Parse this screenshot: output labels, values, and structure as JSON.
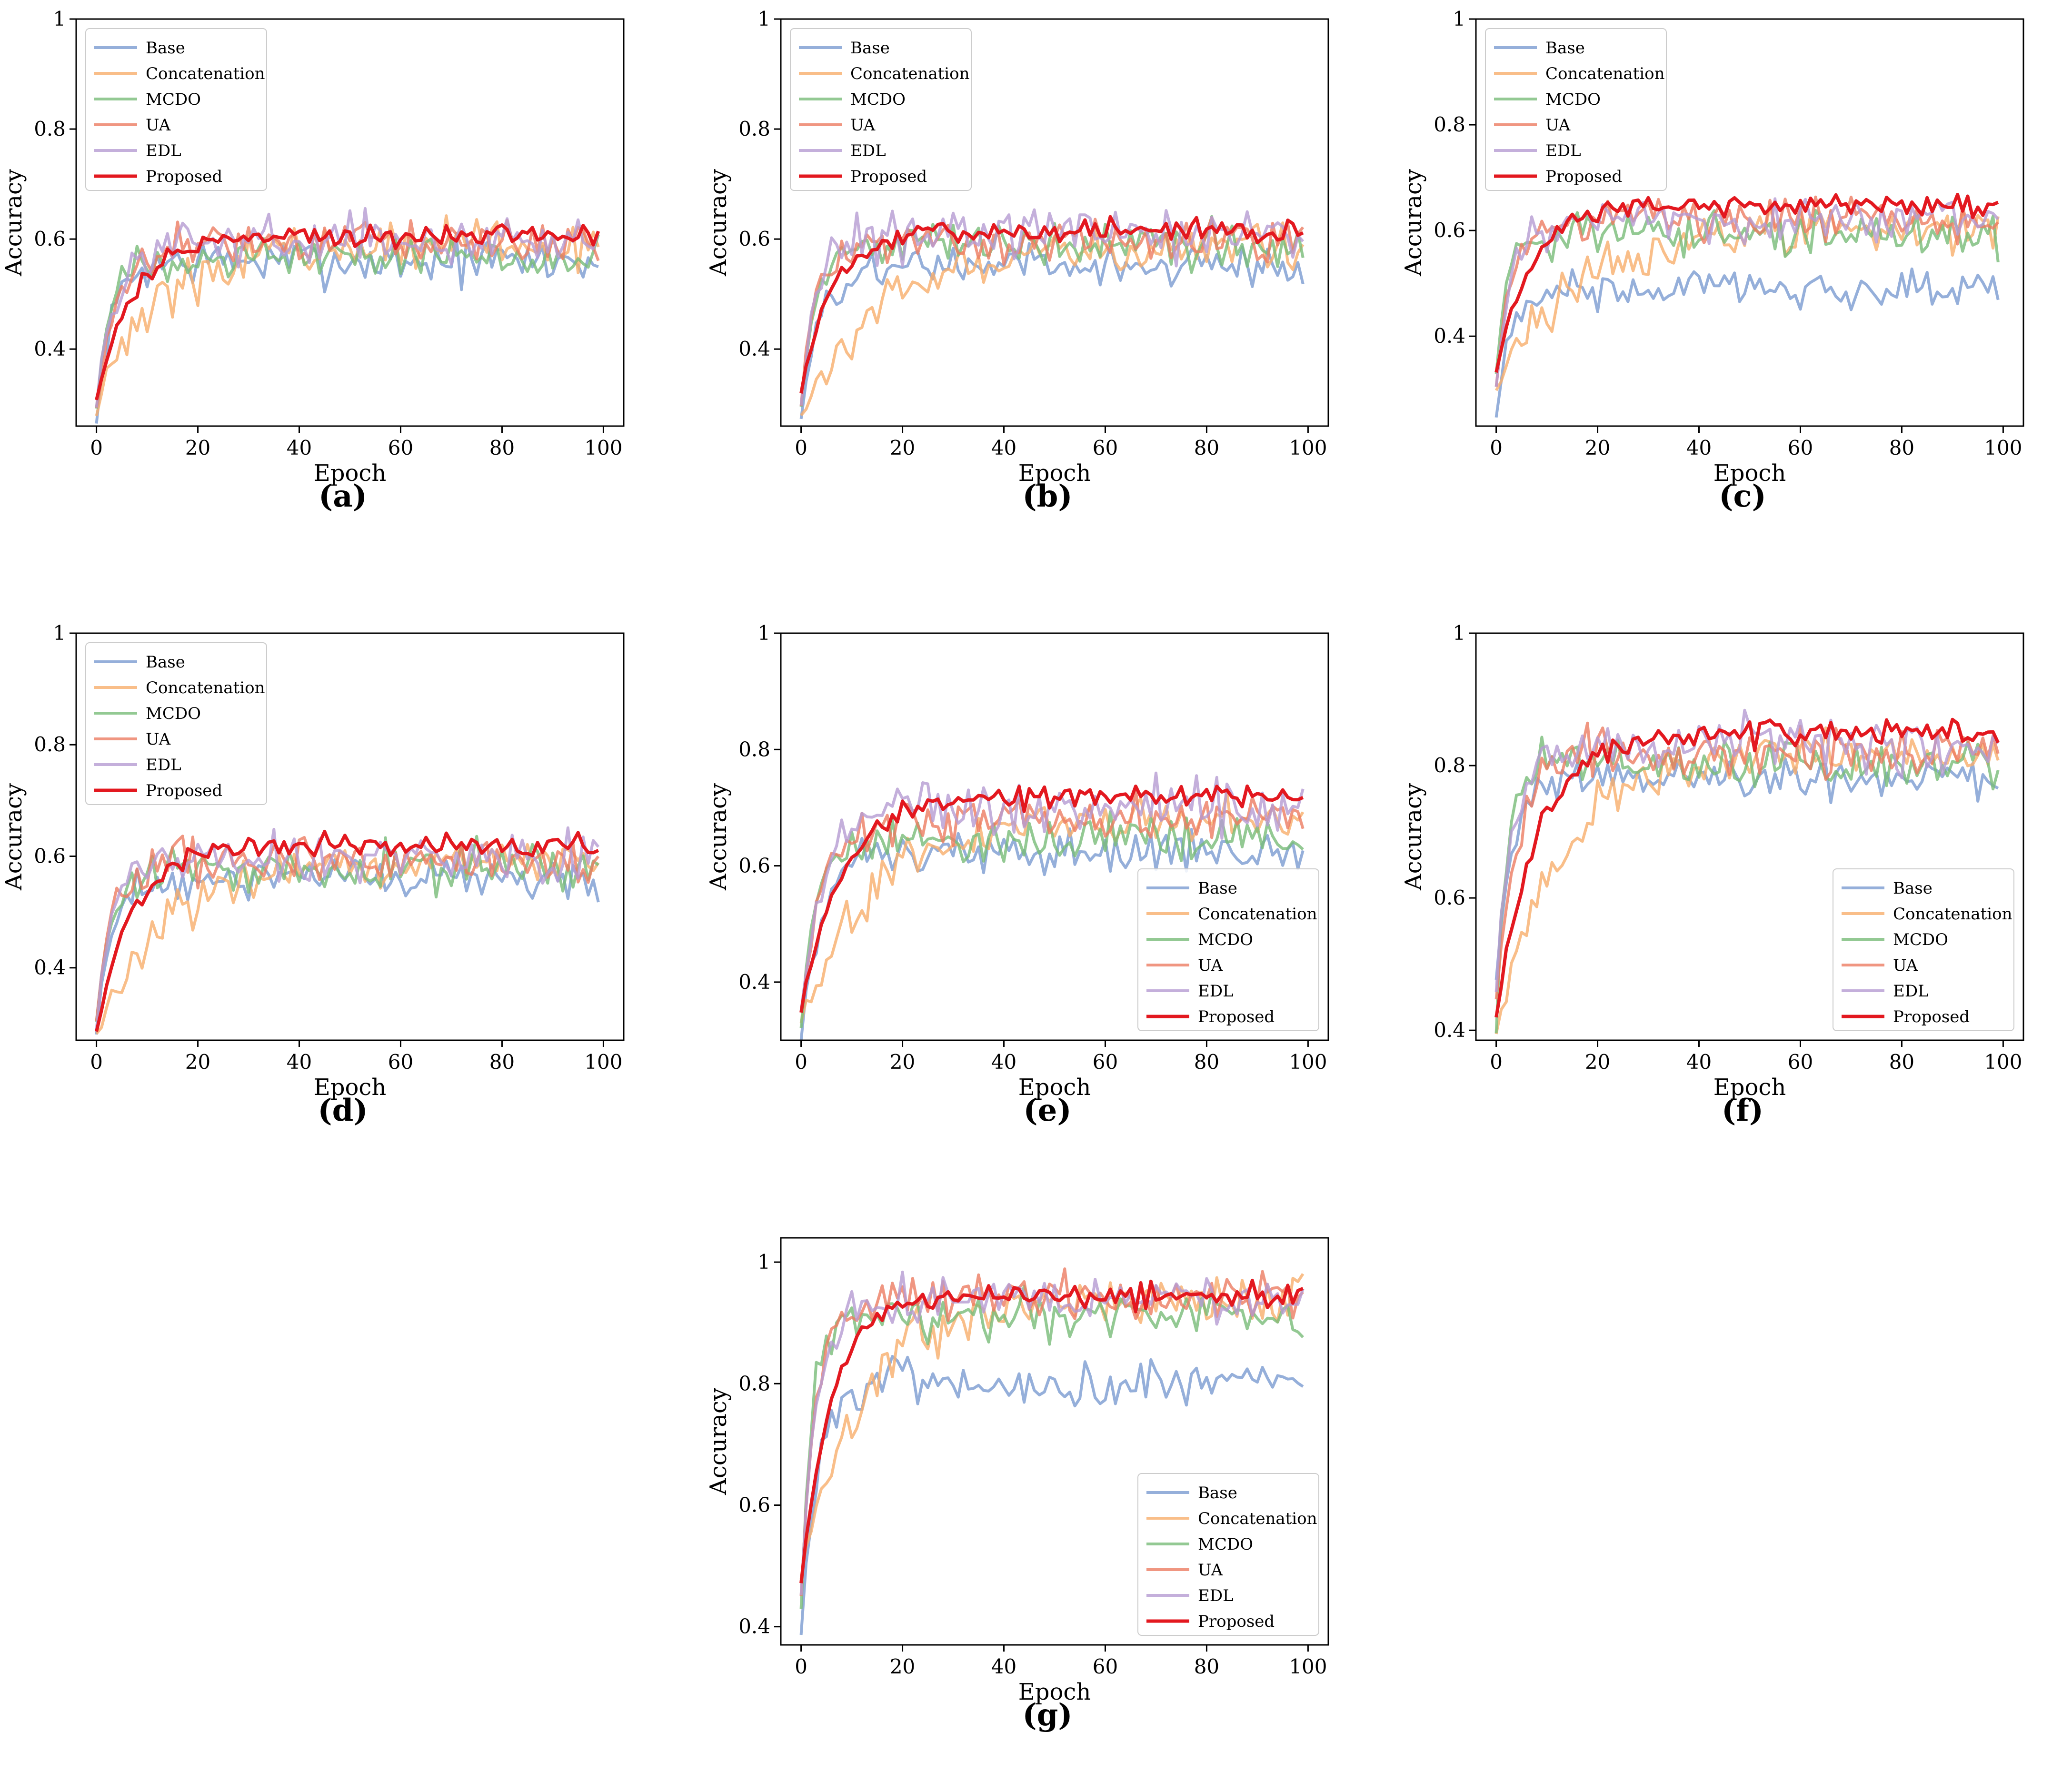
{
  "figure": {
    "series_names": [
      "Base",
      "Concatenation",
      "MCDO",
      "UA",
      "EDL",
      "Proposed"
    ],
    "series_colors": [
      "#7b9bd1",
      "#f8ae6c",
      "#78bb78",
      "#ec7c62",
      "#b59bd2",
      "#e3181f"
    ]
  },
  "chart_data": [
    {
      "panel": "a",
      "caption": "(a)",
      "type": "line",
      "xlabel": "Epoch",
      "ylabel": "Accuracy",
      "xlim": [
        -4,
        104
      ],
      "ylim": [
        0.26,
        1.0
      ],
      "xticks": [
        0,
        20,
        40,
        60,
        80,
        100
      ],
      "xtick_labels": [
        "0",
        "20",
        "40",
        "60",
        "80",
        "100"
      ],
      "yticks": [
        0.4,
        0.6,
        0.8,
        1.0
      ],
      "ytick_labels": [
        "0.4",
        "0.6",
        "0.8",
        "1"
      ],
      "legend": "top-left",
      "series": [
        {
          "name": "Base",
          "start": 0.26,
          "end": 0.56,
          "tau": 3,
          "noise": 0.022
        },
        {
          "name": "Concatenation",
          "start": 0.29,
          "end": 0.59,
          "tau": 12,
          "noise": 0.022
        },
        {
          "name": "MCDO",
          "start": 0.3,
          "end": 0.57,
          "tau": 3,
          "noise": 0.018
        },
        {
          "name": "UA",
          "start": 0.3,
          "end": 0.59,
          "tau": 4,
          "noise": 0.018
        },
        {
          "name": "EDL",
          "start": 0.3,
          "end": 0.6,
          "tau": 4,
          "noise": 0.02
        },
        {
          "name": "Proposed",
          "start": 0.31,
          "end": 0.605,
          "tau": 7,
          "noise": 0.01
        }
      ]
    },
    {
      "panel": "b",
      "caption": "(b)",
      "type": "line",
      "xlabel": "Epoch",
      "ylabel": "Accuracy",
      "xlim": [
        -4,
        104
      ],
      "ylim": [
        0.26,
        1.0
      ],
      "xticks": [
        0,
        20,
        40,
        60,
        80,
        100
      ],
      "xtick_labels": [
        "0",
        "20",
        "40",
        "60",
        "80",
        "100"
      ],
      "yticks": [
        0.4,
        0.6,
        0.8,
        1.0
      ],
      "ytick_labels": [
        "0.4",
        "0.6",
        "0.8",
        "1"
      ],
      "legend": "top-left",
      "series": [
        {
          "name": "Base",
          "start": 0.28,
          "end": 0.55,
          "tau": 4,
          "noise": 0.018
        },
        {
          "name": "Concatenation",
          "start": 0.27,
          "end": 0.58,
          "tau": 14,
          "noise": 0.02
        },
        {
          "name": "MCDO",
          "start": 0.3,
          "end": 0.59,
          "tau": 3,
          "noise": 0.02
        },
        {
          "name": "UA",
          "start": 0.3,
          "end": 0.6,
          "tau": 3,
          "noise": 0.02
        },
        {
          "name": "EDL",
          "start": 0.3,
          "end": 0.61,
          "tau": 3,
          "noise": 0.022
        },
        {
          "name": "Proposed",
          "start": 0.32,
          "end": 0.615,
          "tau": 6,
          "noise": 0.01
        }
      ]
    },
    {
      "panel": "c",
      "caption": "(c)",
      "type": "line",
      "xlabel": "Epoch",
      "ylabel": "Accuracy",
      "xlim": [
        -4,
        104
      ],
      "ylim": [
        0.23,
        1.0
      ],
      "xticks": [
        0,
        20,
        40,
        60,
        80,
        100
      ],
      "xtick_labels": [
        "0",
        "20",
        "40",
        "60",
        "80",
        "100"
      ],
      "yticks": [
        0.4,
        0.6,
        0.8,
        1.0
      ],
      "ytick_labels": [
        "0.4",
        "0.6",
        "0.8",
        "1"
      ],
      "legend": "top-left",
      "series": [
        {
          "name": "Base",
          "start": 0.25,
          "end": 0.49,
          "tau": 3,
          "noise": 0.02
        },
        {
          "name": "Concatenation",
          "start": 0.3,
          "end": 0.6,
          "tau": 14,
          "noise": 0.022
        },
        {
          "name": "MCDO",
          "start": 0.33,
          "end": 0.59,
          "tau": 2,
          "noise": 0.02
        },
        {
          "name": "UA",
          "start": 0.32,
          "end": 0.62,
          "tau": 3,
          "noise": 0.02
        },
        {
          "name": "EDL",
          "start": 0.32,
          "end": 0.62,
          "tau": 3,
          "noise": 0.022
        },
        {
          "name": "Proposed",
          "start": 0.33,
          "end": 0.65,
          "tau": 7,
          "noise": 0.01
        }
      ]
    },
    {
      "panel": "d",
      "caption": "(d)",
      "type": "line",
      "xlabel": "Epoch",
      "ylabel": "Accuracy",
      "xlim": [
        -4,
        104
      ],
      "ylim": [
        0.27,
        1.0
      ],
      "xticks": [
        0,
        20,
        40,
        60,
        80,
        100
      ],
      "xtick_labels": [
        "0",
        "20",
        "40",
        "60",
        "80",
        "100"
      ],
      "yticks": [
        0.4,
        0.6,
        0.8,
        1.0
      ],
      "ytick_labels": [
        "0.4",
        "0.6",
        "0.8",
        "1"
      ],
      "legend": "top-left",
      "series": [
        {
          "name": "Base",
          "start": 0.28,
          "end": 0.56,
          "tau": 3,
          "noise": 0.018
        },
        {
          "name": "Concatenation",
          "start": 0.28,
          "end": 0.59,
          "tau": 13,
          "noise": 0.02
        },
        {
          "name": "MCDO",
          "start": 0.3,
          "end": 0.58,
          "tau": 3,
          "noise": 0.02
        },
        {
          "name": "UA",
          "start": 0.3,
          "end": 0.59,
          "tau": 3,
          "noise": 0.02
        },
        {
          "name": "EDL",
          "start": 0.3,
          "end": 0.6,
          "tau": 3,
          "noise": 0.022
        },
        {
          "name": "Proposed",
          "start": 0.29,
          "end": 0.62,
          "tau": 7,
          "noise": 0.01
        }
      ]
    },
    {
      "panel": "e",
      "caption": "(e)",
      "type": "line",
      "xlabel": "Epoch",
      "ylabel": "Accuracy",
      "xlim": [
        -4,
        104
      ],
      "ylim": [
        0.3,
        1.0
      ],
      "xticks": [
        0,
        20,
        40,
        60,
        80,
        100
      ],
      "xtick_labels": [
        "0",
        "20",
        "40",
        "60",
        "80",
        "100"
      ],
      "yticks": [
        0.4,
        0.6,
        0.8,
        1.0
      ],
      "ytick_labels": [
        "0.4",
        "0.6",
        "0.8",
        "1"
      ],
      "legend": "bottom-right",
      "series": [
        {
          "name": "Base",
          "start": 0.31,
          "end": 0.62,
          "tau": 4,
          "noise": 0.018
        },
        {
          "name": "Concatenation",
          "start": 0.34,
          "end": 0.68,
          "tau": 14,
          "noise": 0.02
        },
        {
          "name": "MCDO",
          "start": 0.33,
          "end": 0.65,
          "tau": 3,
          "noise": 0.02
        },
        {
          "name": "UA",
          "start": 0.34,
          "end": 0.68,
          "tau": 4,
          "noise": 0.02
        },
        {
          "name": "EDL",
          "start": 0.34,
          "end": 0.7,
          "tau": 4,
          "noise": 0.022
        },
        {
          "name": "Proposed",
          "start": 0.35,
          "end": 0.72,
          "tau": 8,
          "noise": 0.01
        }
      ]
    },
    {
      "panel": "f",
      "caption": "(f)",
      "type": "line",
      "xlabel": "Epoch",
      "ylabel": "Accuracy",
      "xlim": [
        -4,
        104
      ],
      "ylim": [
        0.385,
        1.0
      ],
      "xticks": [
        0,
        20,
        40,
        60,
        80,
        100
      ],
      "xtick_labels": [
        "0",
        "20",
        "40",
        "60",
        "80",
        "100"
      ],
      "yticks": [
        0.4,
        0.6,
        0.8,
        1.0
      ],
      "ytick_labels": [
        "0.4",
        "0.6",
        "0.8",
        "1"
      ],
      "legend": "bottom-right",
      "series": [
        {
          "name": "Base",
          "start": 0.47,
          "end": 0.78,
          "tau": 3,
          "noise": 0.015
        },
        {
          "name": "Concatenation",
          "start": 0.4,
          "end": 0.82,
          "tau": 13,
          "noise": 0.018
        },
        {
          "name": "MCDO",
          "start": 0.4,
          "end": 0.8,
          "tau": 2,
          "noise": 0.018
        },
        {
          "name": "UA",
          "start": 0.45,
          "end": 0.82,
          "tau": 4,
          "noise": 0.018
        },
        {
          "name": "EDL",
          "start": 0.46,
          "end": 0.83,
          "tau": 3,
          "noise": 0.02
        },
        {
          "name": "Proposed",
          "start": 0.42,
          "end": 0.85,
          "tau": 8,
          "noise": 0.01
        }
      ]
    },
    {
      "panel": "g",
      "caption": "(g)",
      "type": "line",
      "xlabel": "Epoch",
      "ylabel": "Accuracy",
      "xlim": [
        -4,
        104
      ],
      "ylim": [
        0.37,
        1.04
      ],
      "xticks": [
        0,
        20,
        40,
        60,
        80,
        100
      ],
      "xtick_labels": [
        "0",
        "20",
        "40",
        "60",
        "80",
        "100"
      ],
      "yticks": [
        0.4,
        0.6,
        0.8,
        1.0
      ],
      "ytick_labels": [
        "0.4",
        "0.6",
        "0.8",
        "1"
      ],
      "legend": "bottom-right",
      "series": [
        {
          "name": "Base",
          "start": 0.39,
          "end": 0.8,
          "tau": 3,
          "noise": 0.02
        },
        {
          "name": "Concatenation",
          "start": 0.48,
          "end": 0.94,
          "tau": 12,
          "noise": 0.02
        },
        {
          "name": "MCDO",
          "start": 0.43,
          "end": 0.91,
          "tau": 2,
          "noise": 0.02
        },
        {
          "name": "UA",
          "start": 0.45,
          "end": 0.94,
          "tau": 3,
          "noise": 0.018
        },
        {
          "name": "EDL",
          "start": 0.45,
          "end": 0.94,
          "tau": 3,
          "noise": 0.018
        },
        {
          "name": "Proposed",
          "start": 0.47,
          "end": 0.945,
          "tau": 6,
          "noise": 0.01
        }
      ]
    }
  ]
}
